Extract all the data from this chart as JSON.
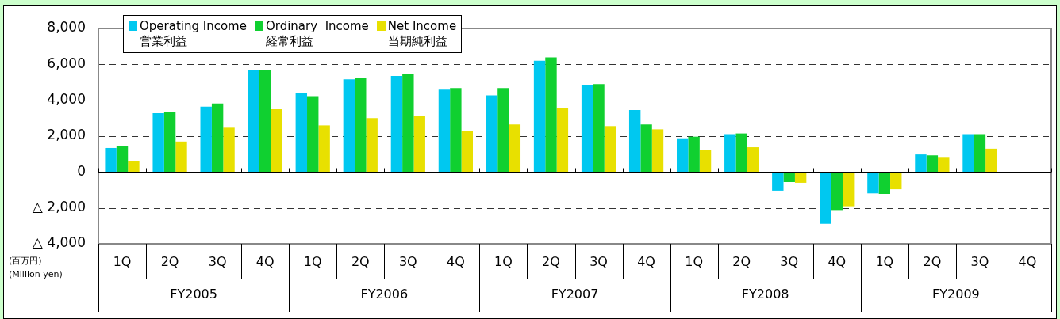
{
  "chart_data": {
    "type": "bar",
    "categories": [
      "1Q",
      "2Q",
      "3Q",
      "4Q",
      "1Q",
      "2Q",
      "3Q",
      "4Q",
      "1Q",
      "2Q",
      "3Q",
      "4Q",
      "1Q",
      "2Q",
      "3Q",
      "4Q",
      "1Q",
      "2Q",
      "3Q",
      "4Q"
    ],
    "series": [
      {
        "name": "Operating Income\n営業利益",
        "color": "#00c8f0",
        "values": [
          1340,
          3280,
          3640,
          5710,
          4410,
          5170,
          5350,
          4590,
          4270,
          6200,
          4860,
          3460,
          1880,
          2110,
          -1040,
          -2890,
          -1190,
          980,
          2110,
          null
        ]
      },
      {
        "name": "Ordinary  Income\n経常利益",
        "color": "#10d030",
        "values": [
          1470,
          3370,
          3820,
          5710,
          4230,
          5260,
          5440,
          4680,
          4680,
          6390,
          4900,
          2650,
          1970,
          2150,
          -560,
          -2120,
          -1220,
          930,
          2110,
          null
        ]
      },
      {
        "name": "Net Income\n当期純利益",
        "color": "#e8e000",
        "values": [
          620,
          1700,
          2470,
          3500,
          2600,
          3000,
          3100,
          2290,
          2650,
          3560,
          2560,
          2380,
          1250,
          1380,
          -600,
          -1910,
          -960,
          840,
          1300,
          null
        ]
      }
    ],
    "ylim": [
      -4000,
      8000
    ],
    "yticks": [
      {
        "value": -4000,
        "label": "△ 4,000"
      },
      {
        "value": -2000,
        "label": "△ 2,000"
      },
      {
        "value": 0,
        "label": "0"
      },
      {
        "value": 2000,
        "label": "2,000"
      },
      {
        "value": 4000,
        "label": "4,000"
      },
      {
        "value": 6000,
        "label": "6,000"
      },
      {
        "value": 8000,
        "label": "8,000"
      }
    ],
    "ylabel": "(百万円)\n(Million yen)",
    "annotations": [
      "FY2005",
      "FY2006",
      "FY2007",
      "FY2008",
      "FY2009"
    ],
    "grid": "y",
    "legend": "top left"
  }
}
